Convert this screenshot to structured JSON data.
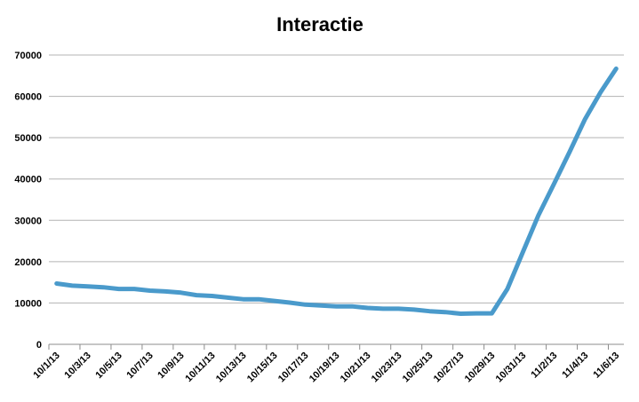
{
  "chart_data": {
    "type": "line",
    "title": "Interactie",
    "xlabel": "",
    "ylabel": "",
    "ylim": [
      0,
      70000
    ],
    "yticks": [
      0,
      10000,
      20000,
      30000,
      40000,
      50000,
      60000,
      70000
    ],
    "grid": true,
    "legend": "none",
    "x": [
      "10/1/13",
      "10/2/13",
      "10/3/13",
      "10/4/13",
      "10/5/13",
      "10/6/13",
      "10/7/13",
      "10/8/13",
      "10/9/13",
      "10/10/13",
      "10/11/13",
      "10/12/13",
      "10/13/13",
      "10/14/13",
      "10/15/13",
      "10/16/13",
      "10/17/13",
      "10/18/13",
      "10/19/13",
      "10/20/13",
      "10/21/13",
      "10/22/13",
      "10/23/13",
      "10/24/13",
      "10/25/13",
      "10/26/13",
      "10/27/13",
      "10/28/13",
      "10/29/13",
      "10/30/13",
      "10/31/13",
      "11/1/13",
      "11/2/13",
      "11/3/13",
      "11/4/13",
      "11/5/13",
      "11/6/13"
    ],
    "x_tick_labels": [
      "10/1/13",
      "10/3/13",
      "10/5/13",
      "10/7/13",
      "10/9/13",
      "10/11/13",
      "10/13/13",
      "10/15/13",
      "10/17/13",
      "10/19/13",
      "10/21/13",
      "10/23/13",
      "10/25/13",
      "10/27/13",
      "10/29/13",
      "10/31/13",
      "11/2/13",
      "11/4/13",
      "11/6/13"
    ],
    "series": [
      {
        "color": "#4a9acb",
        "values": [
          14700,
          14200,
          14000,
          13800,
          13400,
          13400,
          13000,
          12800,
          12500,
          11900,
          11700,
          11300,
          10900,
          10900,
          10500,
          10100,
          9600,
          9400,
          9200,
          9200,
          8800,
          8600,
          8600,
          8400,
          8000,
          7800,
          7400,
          7500,
          7500,
          13400,
          22300,
          31200,
          38800,
          46500,
          54500,
          61000,
          66700
        ]
      }
    ]
  }
}
